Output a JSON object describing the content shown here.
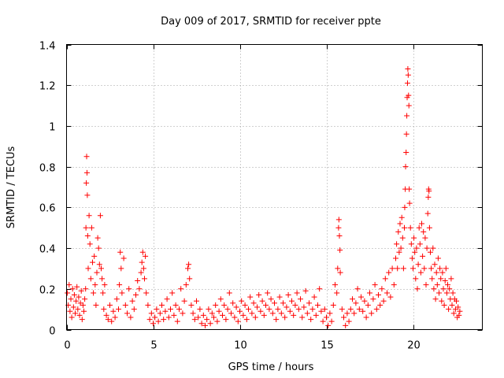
{
  "chart_data": {
    "type": "scatter",
    "title": "Day 009 of 2017, SRMTID for receiver ppte",
    "xlabel": "GPS time / hours",
    "ylabel": "SRMTID / TECUs",
    "xlim": [
      0,
      24
    ],
    "ylim": [
      0,
      1.4
    ],
    "xticks": [
      0,
      5,
      10,
      15,
      20
    ],
    "xtick_labels": [
      "0",
      "5",
      "10",
      "15",
      "20"
    ],
    "yticks": [
      0,
      0.2,
      0.4,
      0.6,
      0.8,
      1.0,
      1.2,
      1.4
    ],
    "ytick_labels": [
      "0",
      "0.2",
      "0.4",
      "0.6",
      "0.8",
      "1",
      "1.2",
      "1.4"
    ],
    "grid": true,
    "marker": "plus",
    "color": "#ff0000",
    "series": [
      {
        "name": "SRMTID",
        "points": [
          [
            0.05,
            0.18
          ],
          [
            0.1,
            0.12
          ],
          [
            0.15,
            0.22
          ],
          [
            0.2,
            0.09
          ],
          [
            0.25,
            0.15
          ],
          [
            0.3,
            0.06
          ],
          [
            0.35,
            0.2
          ],
          [
            0.4,
            0.11
          ],
          [
            0.45,
            0.17
          ],
          [
            0.5,
            0.08
          ],
          [
            0.55,
            0.14
          ],
          [
            0.6,
            0.21
          ],
          [
            0.65,
            0.1
          ],
          [
            0.7,
            0.16
          ],
          [
            0.75,
            0.07
          ],
          [
            0.8,
            0.13
          ],
          [
            0.85,
            0.19
          ],
          [
            0.9,
            0.05
          ],
          [
            0.95,
            0.12
          ],
          [
            1.0,
            0.09
          ],
          [
            1.05,
            0.15
          ],
          [
            1.1,
            0.2
          ],
          [
            1.12,
            0.5
          ],
          [
            1.14,
            0.72
          ],
          [
            1.16,
            0.85
          ],
          [
            1.18,
            0.77
          ],
          [
            1.2,
            0.66
          ],
          [
            1.22,
            0.46
          ],
          [
            1.25,
            0.3
          ],
          [
            1.3,
            0.56
          ],
          [
            1.35,
            0.42
          ],
          [
            1.4,
            0.25
          ],
          [
            1.45,
            0.5
          ],
          [
            1.5,
            0.33
          ],
          [
            1.55,
            0.18
          ],
          [
            1.6,
            0.36
          ],
          [
            1.65,
            0.22
          ],
          [
            1.7,
            0.12
          ],
          [
            1.75,
            0.28
          ],
          [
            1.8,
            0.45
          ],
          [
            1.85,
            0.4
          ],
          [
            1.9,
            0.32
          ],
          [
            1.95,
            0.56
          ],
          [
            2.0,
            0.3
          ],
          [
            2.05,
            0.25
          ],
          [
            2.1,
            0.18
          ],
          [
            2.15,
            0.1
          ],
          [
            2.2,
            0.22
          ],
          [
            2.3,
            0.07
          ],
          [
            2.4,
            0.05
          ],
          [
            2.5,
            0.12
          ],
          [
            2.6,
            0.04
          ],
          [
            2.7,
            0.09
          ],
          [
            2.8,
            0.06
          ],
          [
            2.9,
            0.15
          ],
          [
            3.0,
            0.1
          ],
          [
            3.05,
            0.22
          ],
          [
            3.1,
            0.38
          ],
          [
            3.15,
            0.3
          ],
          [
            3.2,
            0.18
          ],
          [
            3.3,
            0.35
          ],
          [
            3.4,
            0.12
          ],
          [
            3.5,
            0.08
          ],
          [
            3.6,
            0.2
          ],
          [
            3.7,
            0.06
          ],
          [
            3.8,
            0.14
          ],
          [
            3.9,
            0.1
          ],
          [
            4.0,
            0.17
          ],
          [
            4.1,
            0.24
          ],
          [
            4.2,
            0.2
          ],
          [
            4.3,
            0.28
          ],
          [
            4.35,
            0.33
          ],
          [
            4.4,
            0.38
          ],
          [
            4.45,
            0.3
          ],
          [
            4.5,
            0.25
          ],
          [
            4.55,
            0.36
          ],
          [
            4.6,
            0.18
          ],
          [
            4.7,
            0.12
          ],
          [
            4.8,
            0.05
          ],
          [
            4.9,
            0.08
          ],
          [
            5.0,
            0.03
          ],
          [
            5.1,
            0.06
          ],
          [
            5.2,
            0.1
          ],
          [
            5.3,
            0.04
          ],
          [
            5.4,
            0.08
          ],
          [
            5.5,
            0.12
          ],
          [
            5.6,
            0.05
          ],
          [
            5.7,
            0.09
          ],
          [
            5.8,
            0.15
          ],
          [
            5.9,
            0.06
          ],
          [
            6.0,
            0.1
          ],
          [
            6.1,
            0.18
          ],
          [
            6.2,
            0.07
          ],
          [
            6.3,
            0.12
          ],
          [
            6.4,
            0.04
          ],
          [
            6.5,
            0.1
          ],
          [
            6.6,
            0.2
          ],
          [
            6.7,
            0.08
          ],
          [
            6.8,
            0.14
          ],
          [
            6.9,
            0.22
          ],
          [
            7.0,
            0.3
          ],
          [
            7.05,
            0.32
          ],
          [
            7.1,
            0.25
          ],
          [
            7.2,
            0.12
          ],
          [
            7.3,
            0.08
          ],
          [
            7.4,
            0.05
          ],
          [
            7.5,
            0.14
          ],
          [
            7.6,
            0.06
          ],
          [
            7.7,
            0.1
          ],
          [
            7.8,
            0.03
          ],
          [
            7.9,
            0.07
          ],
          [
            8.0,
            0.02
          ],
          [
            8.1,
            0.05
          ],
          [
            8.2,
            0.1
          ],
          [
            8.3,
            0.03
          ],
          [
            8.4,
            0.08
          ],
          [
            8.5,
            0.06
          ],
          [
            8.6,
            0.12
          ],
          [
            8.7,
            0.04
          ],
          [
            8.8,
            0.09
          ],
          [
            8.9,
            0.15
          ],
          [
            9.0,
            0.07
          ],
          [
            9.1,
            0.12
          ],
          [
            9.2,
            0.05
          ],
          [
            9.3,
            0.1
          ],
          [
            9.4,
            0.18
          ],
          [
            9.5,
            0.08
          ],
          [
            9.6,
            0.13
          ],
          [
            9.7,
            0.06
          ],
          [
            9.8,
            0.11
          ],
          [
            9.9,
            0.04
          ],
          [
            10.0,
            0.09
          ],
          [
            10.1,
            0.14
          ],
          [
            10.2,
            0.07
          ],
          [
            10.3,
            0.12
          ],
          [
            10.4,
            0.05
          ],
          [
            10.5,
            0.1
          ],
          [
            10.6,
            0.16
          ],
          [
            10.7,
            0.08
          ],
          [
            10.8,
            0.13
          ],
          [
            10.9,
            0.06
          ],
          [
            11.0,
            0.11
          ],
          [
            11.1,
            0.17
          ],
          [
            11.2,
            0.09
          ],
          [
            11.3,
            0.14
          ],
          [
            11.4,
            0.07
          ],
          [
            11.5,
            0.12
          ],
          [
            11.6,
            0.18
          ],
          [
            11.7,
            0.1
          ],
          [
            11.8,
            0.15
          ],
          [
            11.9,
            0.08
          ],
          [
            12.0,
            0.13
          ],
          [
            12.1,
            0.05
          ],
          [
            12.2,
            0.1
          ],
          [
            12.3,
            0.16
          ],
          [
            12.4,
            0.08
          ],
          [
            12.5,
            0.13
          ],
          [
            12.6,
            0.06
          ],
          [
            12.7,
            0.11
          ],
          [
            12.8,
            0.17
          ],
          [
            12.9,
            0.09
          ],
          [
            13.0,
            0.14
          ],
          [
            13.1,
            0.07
          ],
          [
            13.2,
            0.12
          ],
          [
            13.3,
            0.18
          ],
          [
            13.4,
            0.1
          ],
          [
            13.5,
            0.15
          ],
          [
            13.6,
            0.06
          ],
          [
            13.7,
            0.11
          ],
          [
            13.8,
            0.19
          ],
          [
            13.9,
            0.08
          ],
          [
            14.0,
            0.13
          ],
          [
            14.1,
            0.05
          ],
          [
            14.2,
            0.1
          ],
          [
            14.3,
            0.16
          ],
          [
            14.4,
            0.07
          ],
          [
            14.5,
            0.12
          ],
          [
            14.6,
            0.2
          ],
          [
            14.7,
            0.09
          ],
          [
            14.8,
            0.04
          ],
          [
            14.9,
            0.1
          ],
          [
            15.0,
            0.06
          ],
          [
            15.1,
            0.02
          ],
          [
            15.2,
            0.08
          ],
          [
            15.3,
            0.04
          ],
          [
            15.4,
            0.12
          ],
          [
            15.5,
            0.22
          ],
          [
            15.6,
            0.18
          ],
          [
            15.65,
            0.3
          ],
          [
            15.7,
            0.5
          ],
          [
            15.72,
            0.54
          ],
          [
            15.75,
            0.46
          ],
          [
            15.78,
            0.39
          ],
          [
            15.8,
            0.28
          ],
          [
            15.9,
            0.1
          ],
          [
            16.0,
            0.06
          ],
          [
            16.1,
            0.02
          ],
          [
            16.2,
            0.08
          ],
          [
            16.3,
            0.04
          ],
          [
            16.4,
            0.1
          ],
          [
            16.5,
            0.15
          ],
          [
            16.6,
            0.08
          ],
          [
            16.7,
            0.13
          ],
          [
            16.8,
            0.2
          ],
          [
            16.9,
            0.1
          ],
          [
            17.0,
            0.16
          ],
          [
            17.1,
            0.09
          ],
          [
            17.2,
            0.14
          ],
          [
            17.3,
            0.06
          ],
          [
            17.4,
            0.12
          ],
          [
            17.5,
            0.18
          ],
          [
            17.6,
            0.08
          ],
          [
            17.7,
            0.15
          ],
          [
            17.8,
            0.22
          ],
          [
            17.9,
            0.1
          ],
          [
            18.0,
            0.17
          ],
          [
            18.1,
            0.12
          ],
          [
            18.2,
            0.2
          ],
          [
            18.3,
            0.14
          ],
          [
            18.4,
            0.25
          ],
          [
            18.5,
            0.18
          ],
          [
            18.6,
            0.28
          ],
          [
            18.7,
            0.16
          ],
          [
            18.8,
            0.3
          ],
          [
            18.9,
            0.22
          ],
          [
            19.0,
            0.35
          ],
          [
            19.05,
            0.42
          ],
          [
            19.1,
            0.3
          ],
          [
            19.15,
            0.48
          ],
          [
            19.2,
            0.38
          ],
          [
            19.25,
            0.52
          ],
          [
            19.3,
            0.4
          ],
          [
            19.35,
            0.55
          ],
          [
            19.4,
            0.45
          ],
          [
            19.45,
            0.3
          ],
          [
            19.5,
            0.5
          ],
          [
            19.52,
            0.6
          ],
          [
            19.55,
            0.69
          ],
          [
            19.57,
            0.8
          ],
          [
            19.6,
            0.87
          ],
          [
            19.62,
            0.96
          ],
          [
            19.64,
            1.05
          ],
          [
            19.66,
            1.14
          ],
          [
            19.68,
            1.21
          ],
          [
            19.7,
            1.28
          ],
          [
            19.72,
            1.25
          ],
          [
            19.74,
            1.15
          ],
          [
            19.76,
            1.1
          ],
          [
            19.78,
            0.69
          ],
          [
            19.8,
            0.62
          ],
          [
            19.85,
            0.5
          ],
          [
            19.9,
            0.42
          ],
          [
            19.95,
            0.35
          ],
          [
            20.0,
            0.3
          ],
          [
            20.05,
            0.45
          ],
          [
            20.1,
            0.38
          ],
          [
            20.15,
            0.25
          ],
          [
            20.2,
            0.4
          ],
          [
            20.25,
            0.2
          ],
          [
            20.3,
            0.32
          ],
          [
            20.35,
            0.5
          ],
          [
            20.4,
            0.42
          ],
          [
            20.45,
            0.28
          ],
          [
            20.5,
            0.52
          ],
          [
            20.55,
            0.36
          ],
          [
            20.6,
            0.48
          ],
          [
            20.65,
            0.3
          ],
          [
            20.7,
            0.45
          ],
          [
            20.75,
            0.22
          ],
          [
            20.8,
            0.4
          ],
          [
            20.85,
            0.57
          ],
          [
            20.88,
            0.65
          ],
          [
            20.9,
            0.69
          ],
          [
            20.92,
            0.68
          ],
          [
            20.95,
            0.5
          ],
          [
            21.0,
            0.38
          ],
          [
            21.05,
            0.3
          ],
          [
            21.1,
            0.25
          ],
          [
            21.15,
            0.4
          ],
          [
            21.2,
            0.2
          ],
          [
            21.25,
            0.32
          ],
          [
            21.3,
            0.15
          ],
          [
            21.35,
            0.28
          ],
          [
            21.4,
            0.22
          ],
          [
            21.45,
            0.35
          ],
          [
            21.5,
            0.18
          ],
          [
            21.55,
            0.3
          ],
          [
            21.6,
            0.25
          ],
          [
            21.65,
            0.14
          ],
          [
            21.7,
            0.28
          ],
          [
            21.75,
            0.2
          ],
          [
            21.8,
            0.12
          ],
          [
            21.85,
            0.24
          ],
          [
            21.9,
            0.3
          ],
          [
            21.95,
            0.18
          ],
          [
            22.0,
            0.22
          ],
          [
            22.05,
            0.1
          ],
          [
            22.1,
            0.2
          ],
          [
            22.15,
            0.15
          ],
          [
            22.2,
            0.25
          ],
          [
            22.25,
            0.12
          ],
          [
            22.3,
            0.18
          ],
          [
            22.35,
            0.08
          ],
          [
            22.4,
            0.15
          ],
          [
            22.45,
            0.1
          ],
          [
            22.5,
            0.14
          ],
          [
            22.55,
            0.06
          ],
          [
            22.6,
            0.11
          ],
          [
            22.65,
            0.07
          ],
          [
            22.7,
            0.09
          ]
        ]
      }
    ]
  }
}
